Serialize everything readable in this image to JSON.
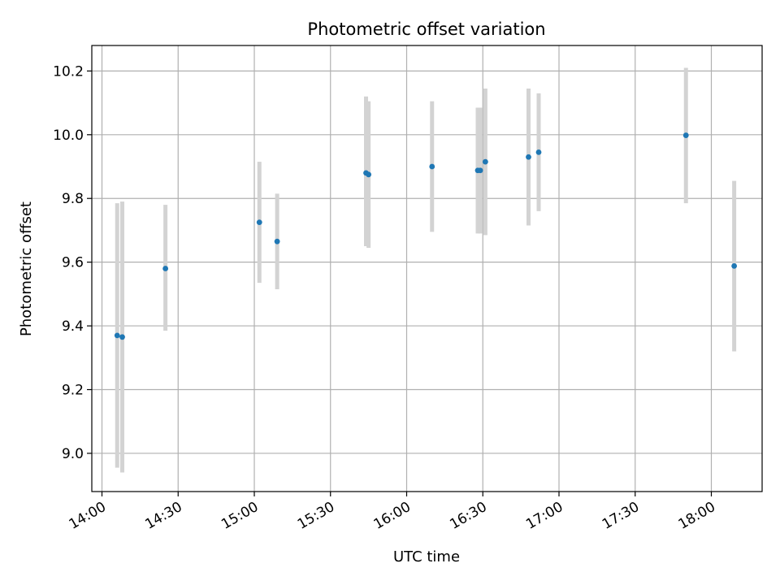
{
  "chart_data": {
    "type": "scatter",
    "title": "Photometric offset variation",
    "xlabel": "UTC time",
    "ylabel": "Photometric offset",
    "x_ticks": [
      "14:00",
      "14:30",
      "15:00",
      "15:30",
      "16:00",
      "16:30",
      "17:00",
      "17:30",
      "18:00"
    ],
    "y_ticks": [
      "9.0",
      "9.2",
      "9.4",
      "9.6",
      "9.8",
      "10.0",
      "10.2"
    ],
    "xlim": [
      "13:56",
      "18:20"
    ],
    "ylim": [
      8.88,
      10.28
    ],
    "grid": true,
    "colors": {
      "point": "#1f77b4",
      "errorbar": "#d3d3d3",
      "grid": "#b0b0b0"
    },
    "series": [
      {
        "points": [
          {
            "x": "14:06",
            "y": 9.37,
            "yerr_low": 8.955,
            "yerr_high": 9.785
          },
          {
            "x": "14:08",
            "y": 9.365,
            "yerr_low": 8.94,
            "yerr_high": 9.79
          },
          {
            "x": "14:25",
            "y": 9.58,
            "yerr_low": 9.385,
            "yerr_high": 9.78
          },
          {
            "x": "15:02",
            "y": 9.725,
            "yerr_low": 9.535,
            "yerr_high": 9.915
          },
          {
            "x": "15:09",
            "y": 9.665,
            "yerr_low": 9.515,
            "yerr_high": 9.815
          },
          {
            "x": "15:44",
            "y": 9.88,
            "yerr_low": 9.65,
            "yerr_high": 10.12
          },
          {
            "x": "15:45",
            "y": 9.875,
            "yerr_low": 9.645,
            "yerr_high": 10.105
          },
          {
            "x": "16:10",
            "y": 9.9,
            "yerr_low": 9.695,
            "yerr_high": 10.105
          },
          {
            "x": "16:28",
            "y": 9.888,
            "yerr_low": 9.69,
            "yerr_high": 10.085
          },
          {
            "x": "16:29",
            "y": 9.888,
            "yerr_low": 9.69,
            "yerr_high": 10.085
          },
          {
            "x": "16:31",
            "y": 9.915,
            "yerr_low": 9.685,
            "yerr_high": 10.145
          },
          {
            "x": "16:48",
            "y": 9.93,
            "yerr_low": 9.715,
            "yerr_high": 10.145
          },
          {
            "x": "16:52",
            "y": 9.945,
            "yerr_low": 9.76,
            "yerr_high": 10.13
          },
          {
            "x": "17:50",
            "y": 9.998,
            "yerr_low": 9.785,
            "yerr_high": 10.21
          },
          {
            "x": "18:09",
            "y": 9.588,
            "yerr_low": 9.32,
            "yerr_high": 9.855
          }
        ]
      }
    ]
  }
}
